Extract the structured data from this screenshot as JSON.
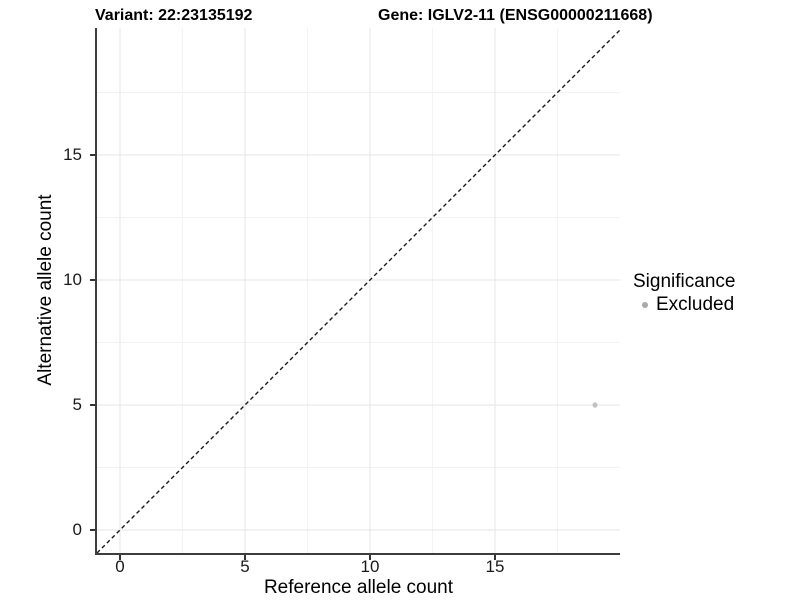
{
  "chart_data": {
    "type": "scatter",
    "title_left": "Variant: 22:23135192",
    "title_right": "Gene: IGLV2-11 (ENSG00000211668)",
    "xlabel": "Reference allele count",
    "ylabel": "Alternative allele count",
    "xlim": [
      -0.92,
      20.0
    ],
    "ylim": [
      -0.92,
      20.08
    ],
    "x_ticks": [
      0,
      5,
      10,
      15
    ],
    "y_ticks": [
      0,
      5,
      10,
      15
    ],
    "x_minor_ticks": [
      2.5,
      7.5,
      12.5,
      17.5
    ],
    "y_minor_ticks": [
      2.5,
      7.5,
      12.5,
      17.5
    ],
    "grid": true,
    "identity_line": {
      "style": "dashed",
      "slope": 1,
      "intercept": 0
    },
    "series": [
      {
        "name": "Excluded",
        "points": [
          {
            "x": 19,
            "y": 5
          }
        ]
      }
    ],
    "legend": {
      "position": "right",
      "title": "Significance",
      "items": [
        {
          "label": "Excluded",
          "color": "#a9a9a9"
        }
      ]
    },
    "colors": {
      "background": "#ffffff",
      "axis_line": "#3d3d3d",
      "tick_mark": "#333333",
      "tick_text": "#1a1a1a",
      "grid_major": "#e9e9e9",
      "grid_minor": "#f3f3f3",
      "identity_line": "#1a1a1a",
      "point": "#c1c1c1",
      "legend_point": "#a9a9a9"
    }
  }
}
